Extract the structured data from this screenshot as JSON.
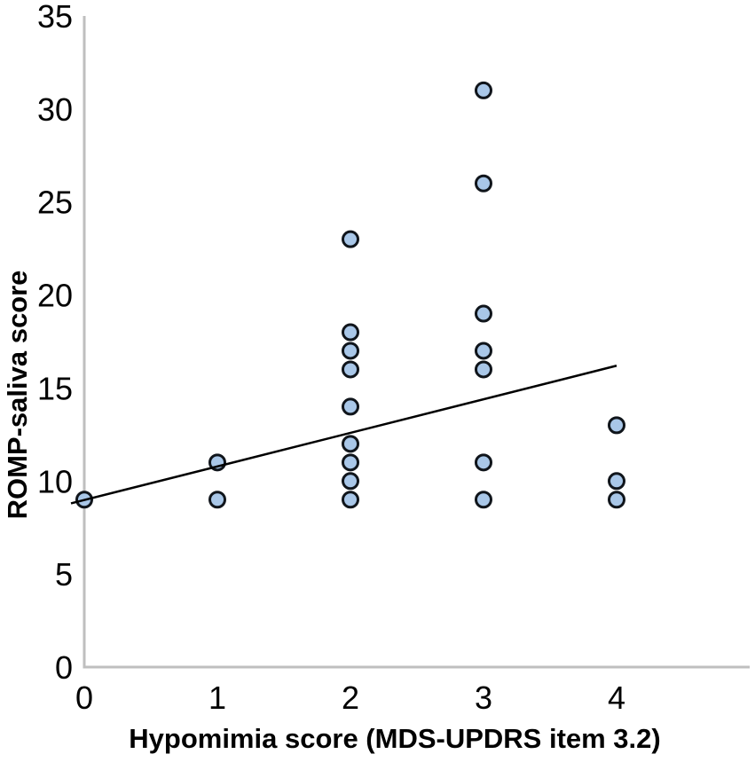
{
  "chart_data": {
    "type": "scatter",
    "title": "",
    "xlabel": "Hypomimia score (MDS-UPDRS item 3.2)",
    "ylabel": "ROMP-saliva score",
    "xlim": [
      0,
      5
    ],
    "ylim": [
      0,
      35
    ],
    "x_ticks": [
      "0",
      "1",
      "2",
      "3",
      "4"
    ],
    "x_tick_values": [
      0,
      1,
      2,
      3,
      4
    ],
    "y_ticks": [
      "0",
      "5",
      "10",
      "15",
      "20",
      "25",
      "30",
      "35"
    ],
    "y_tick_values": [
      0,
      5,
      10,
      15,
      20,
      25,
      30,
      35
    ],
    "grid": false,
    "legend": false,
    "points": [
      {
        "x": 0,
        "y": 9
      },
      {
        "x": 1,
        "y": 9
      },
      {
        "x": 1,
        "y": 11
      },
      {
        "x": 2,
        "y": 9
      },
      {
        "x": 2,
        "y": 10
      },
      {
        "x": 2,
        "y": 11
      },
      {
        "x": 2,
        "y": 12
      },
      {
        "x": 2,
        "y": 14
      },
      {
        "x": 2,
        "y": 16
      },
      {
        "x": 2,
        "y": 17
      },
      {
        "x": 2,
        "y": 18
      },
      {
        "x": 2,
        "y": 23
      },
      {
        "x": 3,
        "y": 9
      },
      {
        "x": 3,
        "y": 11
      },
      {
        "x": 3,
        "y": 16
      },
      {
        "x": 3,
        "y": 17
      },
      {
        "x": 3,
        "y": 19
      },
      {
        "x": 3,
        "y": 26
      },
      {
        "x": 3,
        "y": 31
      },
      {
        "x": 4,
        "y": 9
      },
      {
        "x": 4,
        "y": 10
      },
      {
        "x": 4,
        "y": 13
      }
    ],
    "trendline": {
      "x1": -0.1,
      "y1": 8.8,
      "x2": 4.0,
      "y2": 16.2
    },
    "colors": {
      "marker_fill": "#A9C7E8",
      "marker_stroke": "#10151B",
      "trendline": "#000000",
      "axis_line": "#BFBFBF",
      "text": "#000000",
      "background": "#FFFFFF"
    }
  }
}
